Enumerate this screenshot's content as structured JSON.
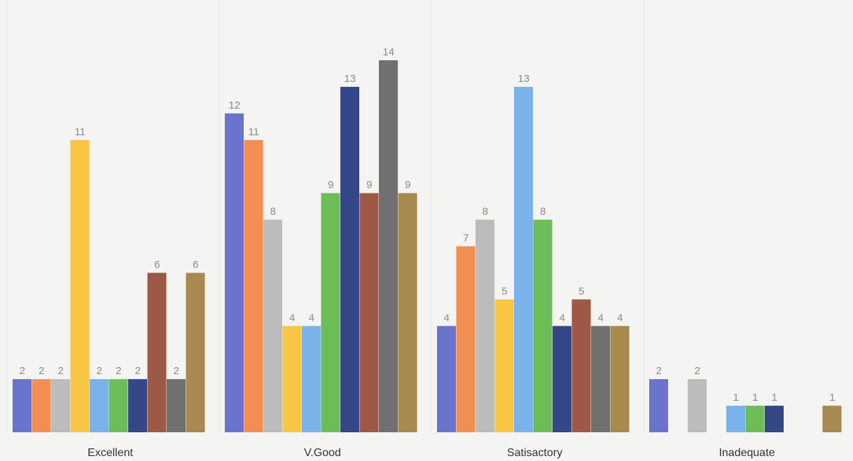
{
  "chart_data": {
    "type": "bar",
    "title": "",
    "xlabel": "",
    "ylabel": "",
    "ylim": [
      0,
      14
    ],
    "grid": false,
    "legend": "none",
    "categories": [
      "Excellent",
      "V.Good",
      "Satisactory",
      "Inadequate"
    ],
    "series": [
      {
        "color": "#6a74cc",
        "values": [
          2,
          12,
          4,
          2
        ]
      },
      {
        "color": "#f28e52",
        "values": [
          2,
          11,
          7,
          null
        ]
      },
      {
        "color": "#bcbcbc",
        "values": [
          2,
          8,
          8,
          2
        ]
      },
      {
        "color": "#f8c545",
        "values": [
          11,
          4,
          5,
          null
        ]
      },
      {
        "color": "#7ab2ea",
        "values": [
          2,
          4,
          13,
          1
        ]
      },
      {
        "color": "#6cbd57",
        "values": [
          2,
          9,
          8,
          1
        ]
      },
      {
        "color": "#354787",
        "values": [
          2,
          13,
          4,
          1
        ]
      },
      {
        "color": "#9e5846",
        "values": [
          6,
          9,
          5,
          null
        ]
      },
      {
        "color": "#707070",
        "values": [
          2,
          14,
          4,
          null
        ]
      },
      {
        "color": "#a8894f",
        "values": [
          6,
          9,
          4,
          1
        ]
      }
    ]
  }
}
